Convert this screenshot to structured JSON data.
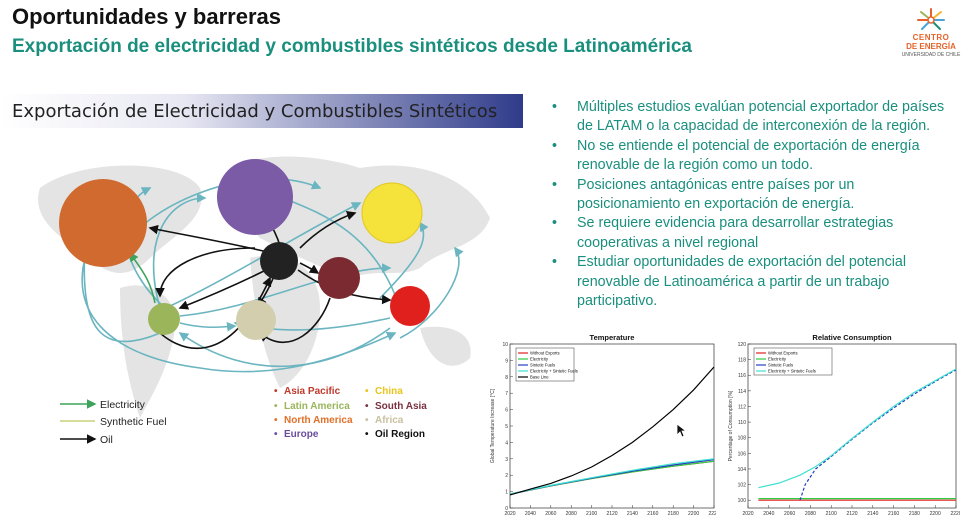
{
  "header": {
    "title": "Oportunidades y barreras",
    "subtitle": "Exportación de electricidad y combustibles sintéticos desde Latinoamérica"
  },
  "logo": {
    "line1": "CENTRO",
    "line2": "DE ENERGÍA",
    "line3": "UNIVERSIDAD DE CHILE"
  },
  "banner": {
    "text": "Exportación de Electricidad y Combustibles Sintéticos"
  },
  "map_legend": {
    "flows": [
      "Electricity",
      "Synthetic Fuel",
      "Oil"
    ],
    "regions_col1": [
      "Asia Pacific",
      "Latin America",
      "North America",
      "Europe"
    ],
    "regions_col2": [
      "China",
      "South Asia",
      "Africa",
      "Oil Region"
    ],
    "region_colors": {
      "Asia Pacific": "#c0392b",
      "Latin America": "#9ab55a",
      "North America": "#e0702a",
      "Europe": "#6a4c9c",
      "China": "#f2d03b",
      "South Asia": "#7a3240",
      "Africa": "#c8c0a0",
      "Oil Region": "#111111"
    }
  },
  "bullets": [
    "Múltiples estudios evalúan potencial exportador de países de LATAM o la capacidad de interconexión de la región.",
    "No se entiende el potencial de exportación de energía renovable de la región como un todo.",
    "Posiciones antagónicas entre países por un posicionamiento en exportación de energía.",
    "Se requiere evidencia para desarrollar estrategias cooperativas a nivel regional",
    "Estudiar oportunidades de exportación del potencial renovable de Latinoamérica a partir de un trabajo participativo."
  ],
  "chart_data": [
    {
      "type": "line",
      "title": "Temperature",
      "ylabel": "Global Temperature Increase [°C]",
      "xlabel": "",
      "xlim": [
        2020,
        2220
      ],
      "ylim": [
        0,
        10
      ],
      "xticks": [
        "2020",
        "2040",
        "2060",
        "2080",
        "2100",
        "2120",
        "2140",
        "2160",
        "2180",
        "2200",
        "2220"
      ],
      "yticks": [
        "0",
        "1",
        "2",
        "3",
        "4",
        "5",
        "6",
        "7",
        "8",
        "9",
        "10"
      ],
      "legend": [
        "Without Exports",
        "Electricity",
        "Sintetic Fuels",
        "Electricity + Sintetic Fuels",
        "Base Line"
      ],
      "series": [
        {
          "name": "Without Exports",
          "color": "#e02020",
          "x": [
            2020,
            2060,
            2100,
            2140,
            2180,
            2220
          ],
          "y": [
            0.85,
            1.35,
            1.8,
            2.2,
            2.55,
            2.85
          ]
        },
        {
          "name": "Electricity",
          "color": "#2ecc40",
          "x": [
            2020,
            2060,
            2100,
            2140,
            2180,
            2220
          ],
          "y": [
            0.85,
            1.35,
            1.8,
            2.2,
            2.55,
            2.85
          ]
        },
        {
          "name": "Sintetic Fuels",
          "color": "#2040c0",
          "x": [
            2020,
            2060,
            2100,
            2140,
            2180,
            2220
          ],
          "y": [
            0.85,
            1.36,
            1.82,
            2.25,
            2.62,
            2.95
          ]
        },
        {
          "name": "Electricity + Sintetic Fuels",
          "color": "#40e0d0",
          "x": [
            2020,
            2060,
            2100,
            2140,
            2180,
            2220
          ],
          "y": [
            0.85,
            1.38,
            1.85,
            2.3,
            2.7,
            3.0
          ]
        },
        {
          "name": "Base Line",
          "color": "#000000",
          "x": [
            2020,
            2040,
            2060,
            2080,
            2100,
            2120,
            2140,
            2160,
            2180,
            2200,
            2220
          ],
          "y": [
            0.8,
            1.15,
            1.5,
            1.95,
            2.5,
            3.2,
            4.0,
            4.95,
            6.0,
            7.2,
            8.6
          ]
        }
      ]
    },
    {
      "type": "line",
      "title": "Relative Consumption",
      "ylabel": "Percentage of Consumption [%]",
      "xlabel": "",
      "xlim": [
        2020,
        2220
      ],
      "ylim": [
        99,
        120
      ],
      "xticks": [
        "2020",
        "2040",
        "2060",
        "2080",
        "2100",
        "2120",
        "2140",
        "2160",
        "2180",
        "2200",
        "2220"
      ],
      "yticks": [
        "100",
        "102",
        "104",
        "106",
        "108",
        "110",
        "112",
        "114",
        "116",
        "118",
        "120"
      ],
      "legend": [
        "Without Exports",
        "Electricity",
        "Sintetic Fuels",
        "Electricity + Sintetic Fuels"
      ],
      "series": [
        {
          "name": "Without Exports",
          "color": "#e02020",
          "x": [
            2030,
            2220
          ],
          "y": [
            100,
            100
          ]
        },
        {
          "name": "Electricity",
          "color": "#2ecc40",
          "x": [
            2030,
            2220
          ],
          "y": [
            100.2,
            100.2
          ]
        },
        {
          "name": "Sintetic Fuels",
          "color": "#2040c0",
          "dashed": true,
          "x": [
            2070,
            2075,
            2085,
            2100,
            2120,
            2140,
            2160,
            2180,
            2200,
            2220
          ],
          "y": [
            100,
            102,
            104,
            105.6,
            107.8,
            109.9,
            111.8,
            113.6,
            115.2,
            116.7
          ]
        },
        {
          "name": "Electricity + Sintetic Fuels",
          "color": "#40e0d0",
          "x": [
            2030,
            2050,
            2070,
            2085,
            2100,
            2120,
            2140,
            2160,
            2180,
            2200,
            2220
          ],
          "y": [
            101.6,
            102.2,
            103.2,
            104.3,
            105.7,
            107.9,
            110,
            112,
            113.8,
            115.3,
            116.8
          ]
        }
      ]
    }
  ]
}
